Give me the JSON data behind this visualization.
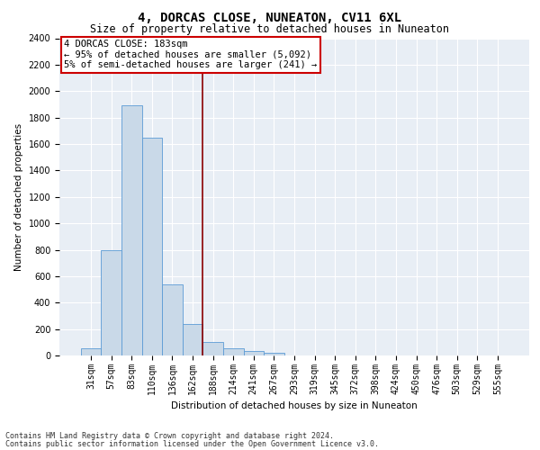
{
  "title": "4, DORCAS CLOSE, NUNEATON, CV11 6XL",
  "subtitle": "Size of property relative to detached houses in Nuneaton",
  "xlabel": "Distribution of detached houses by size in Nuneaton",
  "ylabel": "Number of detached properties",
  "categories": [
    "31sqm",
    "57sqm",
    "83sqm",
    "110sqm",
    "136sqm",
    "162sqm",
    "188sqm",
    "214sqm",
    "241sqm",
    "267sqm",
    "293sqm",
    "319sqm",
    "345sqm",
    "372sqm",
    "398sqm",
    "424sqm",
    "450sqm",
    "476sqm",
    "503sqm",
    "529sqm",
    "555sqm"
  ],
  "values": [
    55,
    800,
    1890,
    1650,
    535,
    240,
    105,
    57,
    37,
    18,
    0,
    0,
    0,
    0,
    0,
    0,
    0,
    0,
    0,
    0,
    0
  ],
  "bar_color": "#c9d9e8",
  "bar_edge_color": "#5b9bd5",
  "vline_x": 5.5,
  "vline_color": "#8b0000",
  "annotation_text": "4 DORCAS CLOSE: 183sqm\n← 95% of detached houses are smaller (5,092)\n5% of semi-detached houses are larger (241) →",
  "annotation_box_color": "#ffffff",
  "annotation_box_edge_color": "#cc0000",
  "ylim": [
    0,
    2400
  ],
  "yticks": [
    0,
    200,
    400,
    600,
    800,
    1000,
    1200,
    1400,
    1600,
    1800,
    2000,
    2200,
    2400
  ],
  "plot_bg_color": "#e8eef5",
  "footer_line1": "Contains HM Land Registry data © Crown copyright and database right 2024.",
  "footer_line2": "Contains public sector information licensed under the Open Government Licence v3.0.",
  "title_fontsize": 10,
  "subtitle_fontsize": 8.5,
  "axis_label_fontsize": 7.5,
  "tick_fontsize": 7,
  "annotation_fontsize": 7.5,
  "footer_fontsize": 6
}
